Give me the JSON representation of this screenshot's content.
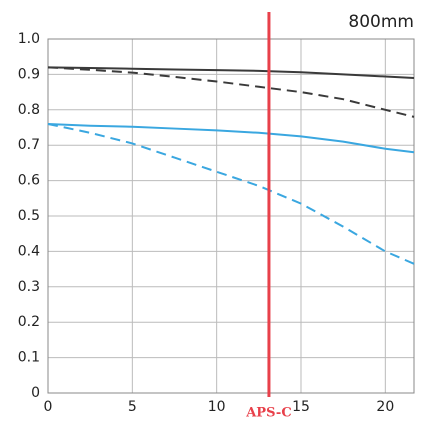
{
  "chart_data": {
    "type": "line",
    "title": "800mm",
    "x": [
      0,
      2.5,
      5,
      7.5,
      10,
      12.5,
      15,
      17.5,
      20,
      21.7
    ],
    "series": [
      {
        "name": null,
        "color": "#3a3a3a",
        "dash": false,
        "values": [
          0.92,
          0.918,
          0.916,
          0.914,
          0.912,
          0.91,
          0.906,
          0.9,
          0.894,
          0.89
        ]
      },
      {
        "name": null,
        "color": "#3a3a3a",
        "dash": true,
        "values": [
          0.92,
          0.913,
          0.905,
          0.893,
          0.88,
          0.865,
          0.85,
          0.83,
          0.8,
          0.78
        ]
      },
      {
        "name": null,
        "color": "#3aa7e0",
        "dash": false,
        "values": [
          0.76,
          0.755,
          0.752,
          0.747,
          0.742,
          0.735,
          0.725,
          0.71,
          0.69,
          0.68
        ]
      },
      {
        "name": null,
        "color": "#3aa7e0",
        "dash": true,
        "values": [
          0.76,
          0.735,
          0.705,
          0.665,
          0.625,
          0.585,
          0.535,
          0.47,
          0.4,
          0.365
        ]
      }
    ],
    "xlim": [
      0,
      21.7
    ],
    "ylim": [
      0,
      1
    ],
    "xticks": [
      0,
      5,
      10,
      15,
      20
    ],
    "yticks": [
      {
        "value": 0,
        "label": "0"
      },
      0.1,
      0.2,
      0.3,
      0.4,
      0.5,
      0.6,
      0.7,
      0.8,
      0.9,
      {
        "value": 1,
        "label": "1.0"
      }
    ],
    "grid": true,
    "marker_line": {
      "x": 13.1,
      "label": "APS-C",
      "color": "#e8404a"
    }
  }
}
